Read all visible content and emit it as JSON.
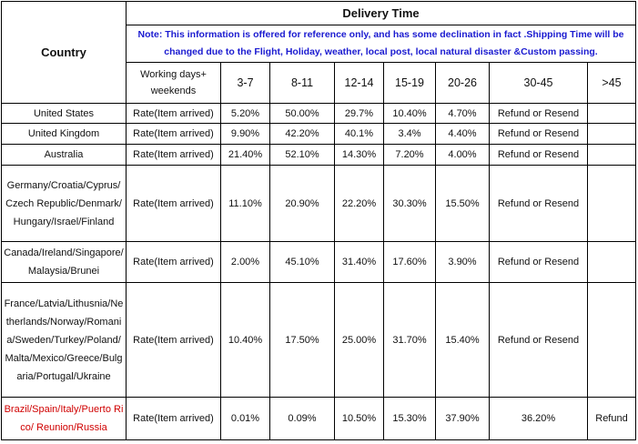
{
  "header": {
    "country": "Country",
    "delivery_time": "Delivery Time",
    "note": "Note: This information is offered for reference only, and has some declination in fact .Shipping Time will be changed due to the Flight, Holiday, weather, local post, local natural disaster &Custom passing.",
    "columns": [
      "Working days+ weekends",
      "3-7",
      "8-11",
      "12-14",
      "15-19",
      "20-26",
      "30-45",
      ">45"
    ]
  },
  "rows": [
    {
      "country": "United States",
      "label": "Rate(Item arrived)",
      "cells": [
        "5.20%",
        "50.00%",
        "29.7%",
        "10.40%",
        "4.70%",
        "Refund or Resend"
      ]
    },
    {
      "country": "United Kingdom",
      "label": "Rate(Item arrived)",
      "cells": [
        "9.90%",
        "42.20%",
        "40.1%",
        "3.4%",
        "4.40%",
        "Refund or Resend"
      ]
    },
    {
      "country": "Australia",
      "label": "Rate(Item arrived)",
      "cells": [
        "21.40%",
        "52.10%",
        "14.30%",
        "7.20%",
        "4.00%",
        "Refund or Resend"
      ]
    },
    {
      "country": "Germany/Croatia/Cyprus/Czech Republic/Denmark/Hungary/Israel/Finland",
      "label": "Rate(Item arrived)",
      "cells": [
        "11.10%",
        "20.90%",
        "22.20%",
        "30.30%",
        "15.50%",
        "Refund or Resend"
      ]
    },
    {
      "country": "Canada/Ireland/Singapore/Malaysia/Brunei",
      "label": "Rate(Item arrived)",
      "cells": [
        "2.00%",
        "45.10%",
        "31.40%",
        "17.60%",
        "3.90%",
        "Refund or Resend"
      ]
    },
    {
      "country": "France/Latvia/Lithusnia/Netherlands/Norway/Romania/Sweden/Turkey/Poland/Malta/Mexico/Greece/Bulgaria/Portugal/Ukraine",
      "label": "Rate(Item arrived)",
      "cells": [
        "10.40%",
        "17.50%",
        "25.00%",
        "31.70%",
        "15.40%",
        "Refund or Resend"
      ]
    },
    {
      "country": "Brazil/Spain/Italy/Puerto Rico/ Reunion/Russia",
      "color": "#d00000",
      "label": "Rate(Item arrived)",
      "cells": [
        "0.01%",
        "0.09%",
        "10.50%",
        "15.30%",
        "37.90%",
        "36.20%",
        "Refund"
      ]
    }
  ]
}
